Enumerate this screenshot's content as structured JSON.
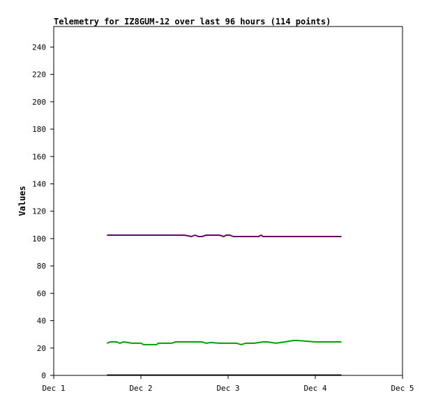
{
  "chart_data": {
    "type": "line",
    "title": "Telemetry for IZ8GUM-12 over last 96 hours (114 points)",
    "xlabel": "",
    "ylabel": "Values",
    "x_ticks": [
      "Dec 1",
      "Dec 2",
      "Dec 3",
      "Dec 4",
      "Dec 5"
    ],
    "y_ticks": [
      "0",
      "20",
      "40",
      "60",
      "80",
      "100",
      "120",
      "140",
      "160",
      "180",
      "200",
      "220",
      "240"
    ],
    "xlim": [
      0,
      4
    ],
    "ylim": [
      0,
      255
    ],
    "grid": false,
    "series": [
      {
        "color": "#660066",
        "x": [
          0.61,
          1.0,
          1.5,
          1.58,
          1.62,
          1.66,
          1.7,
          1.75,
          1.8,
          1.9,
          1.95,
          1.98,
          2.02,
          2.06,
          2.1,
          2.2,
          2.3,
          2.35,
          2.38,
          2.4,
          2.5,
          2.7,
          3.0,
          3.25,
          3.3
        ],
        "values": [
          102.5,
          102.5,
          102.5,
          101.5,
          102.5,
          101.5,
          101.5,
          102.5,
          102.5,
          102.5,
          101.5,
          102.5,
          102.5,
          101.5,
          101.5,
          101.5,
          101.5,
          101.5,
          102.5,
          101.5,
          101.5,
          101.5,
          101.5,
          101.5,
          101.5
        ]
      },
      {
        "color": "#00a000",
        "x": [
          0.61,
          0.65,
          0.72,
          0.76,
          0.8,
          0.9,
          1.0,
          1.03,
          1.1,
          1.18,
          1.2,
          1.35,
          1.4,
          1.5,
          1.7,
          1.75,
          1.8,
          1.9,
          2.1,
          2.15,
          2.2,
          2.3,
          2.4,
          2.45,
          2.55,
          2.65,
          2.75,
          2.8,
          3.0,
          3.3
        ],
        "values": [
          23.5,
          24.5,
          24.5,
          23.5,
          24.5,
          23.5,
          23.5,
          22.5,
          22.5,
          22.5,
          23.5,
          23.5,
          24.5,
          24.5,
          24.5,
          23.5,
          24,
          23.5,
          23.5,
          22.5,
          23.5,
          23.5,
          24.5,
          24.5,
          23.5,
          24.5,
          25.5,
          25.5,
          24.5,
          24.5
        ]
      },
      {
        "color": "#000000",
        "x": [
          0.61,
          3.3
        ],
        "values": [
          0.2,
          0.2
        ]
      }
    ]
  }
}
